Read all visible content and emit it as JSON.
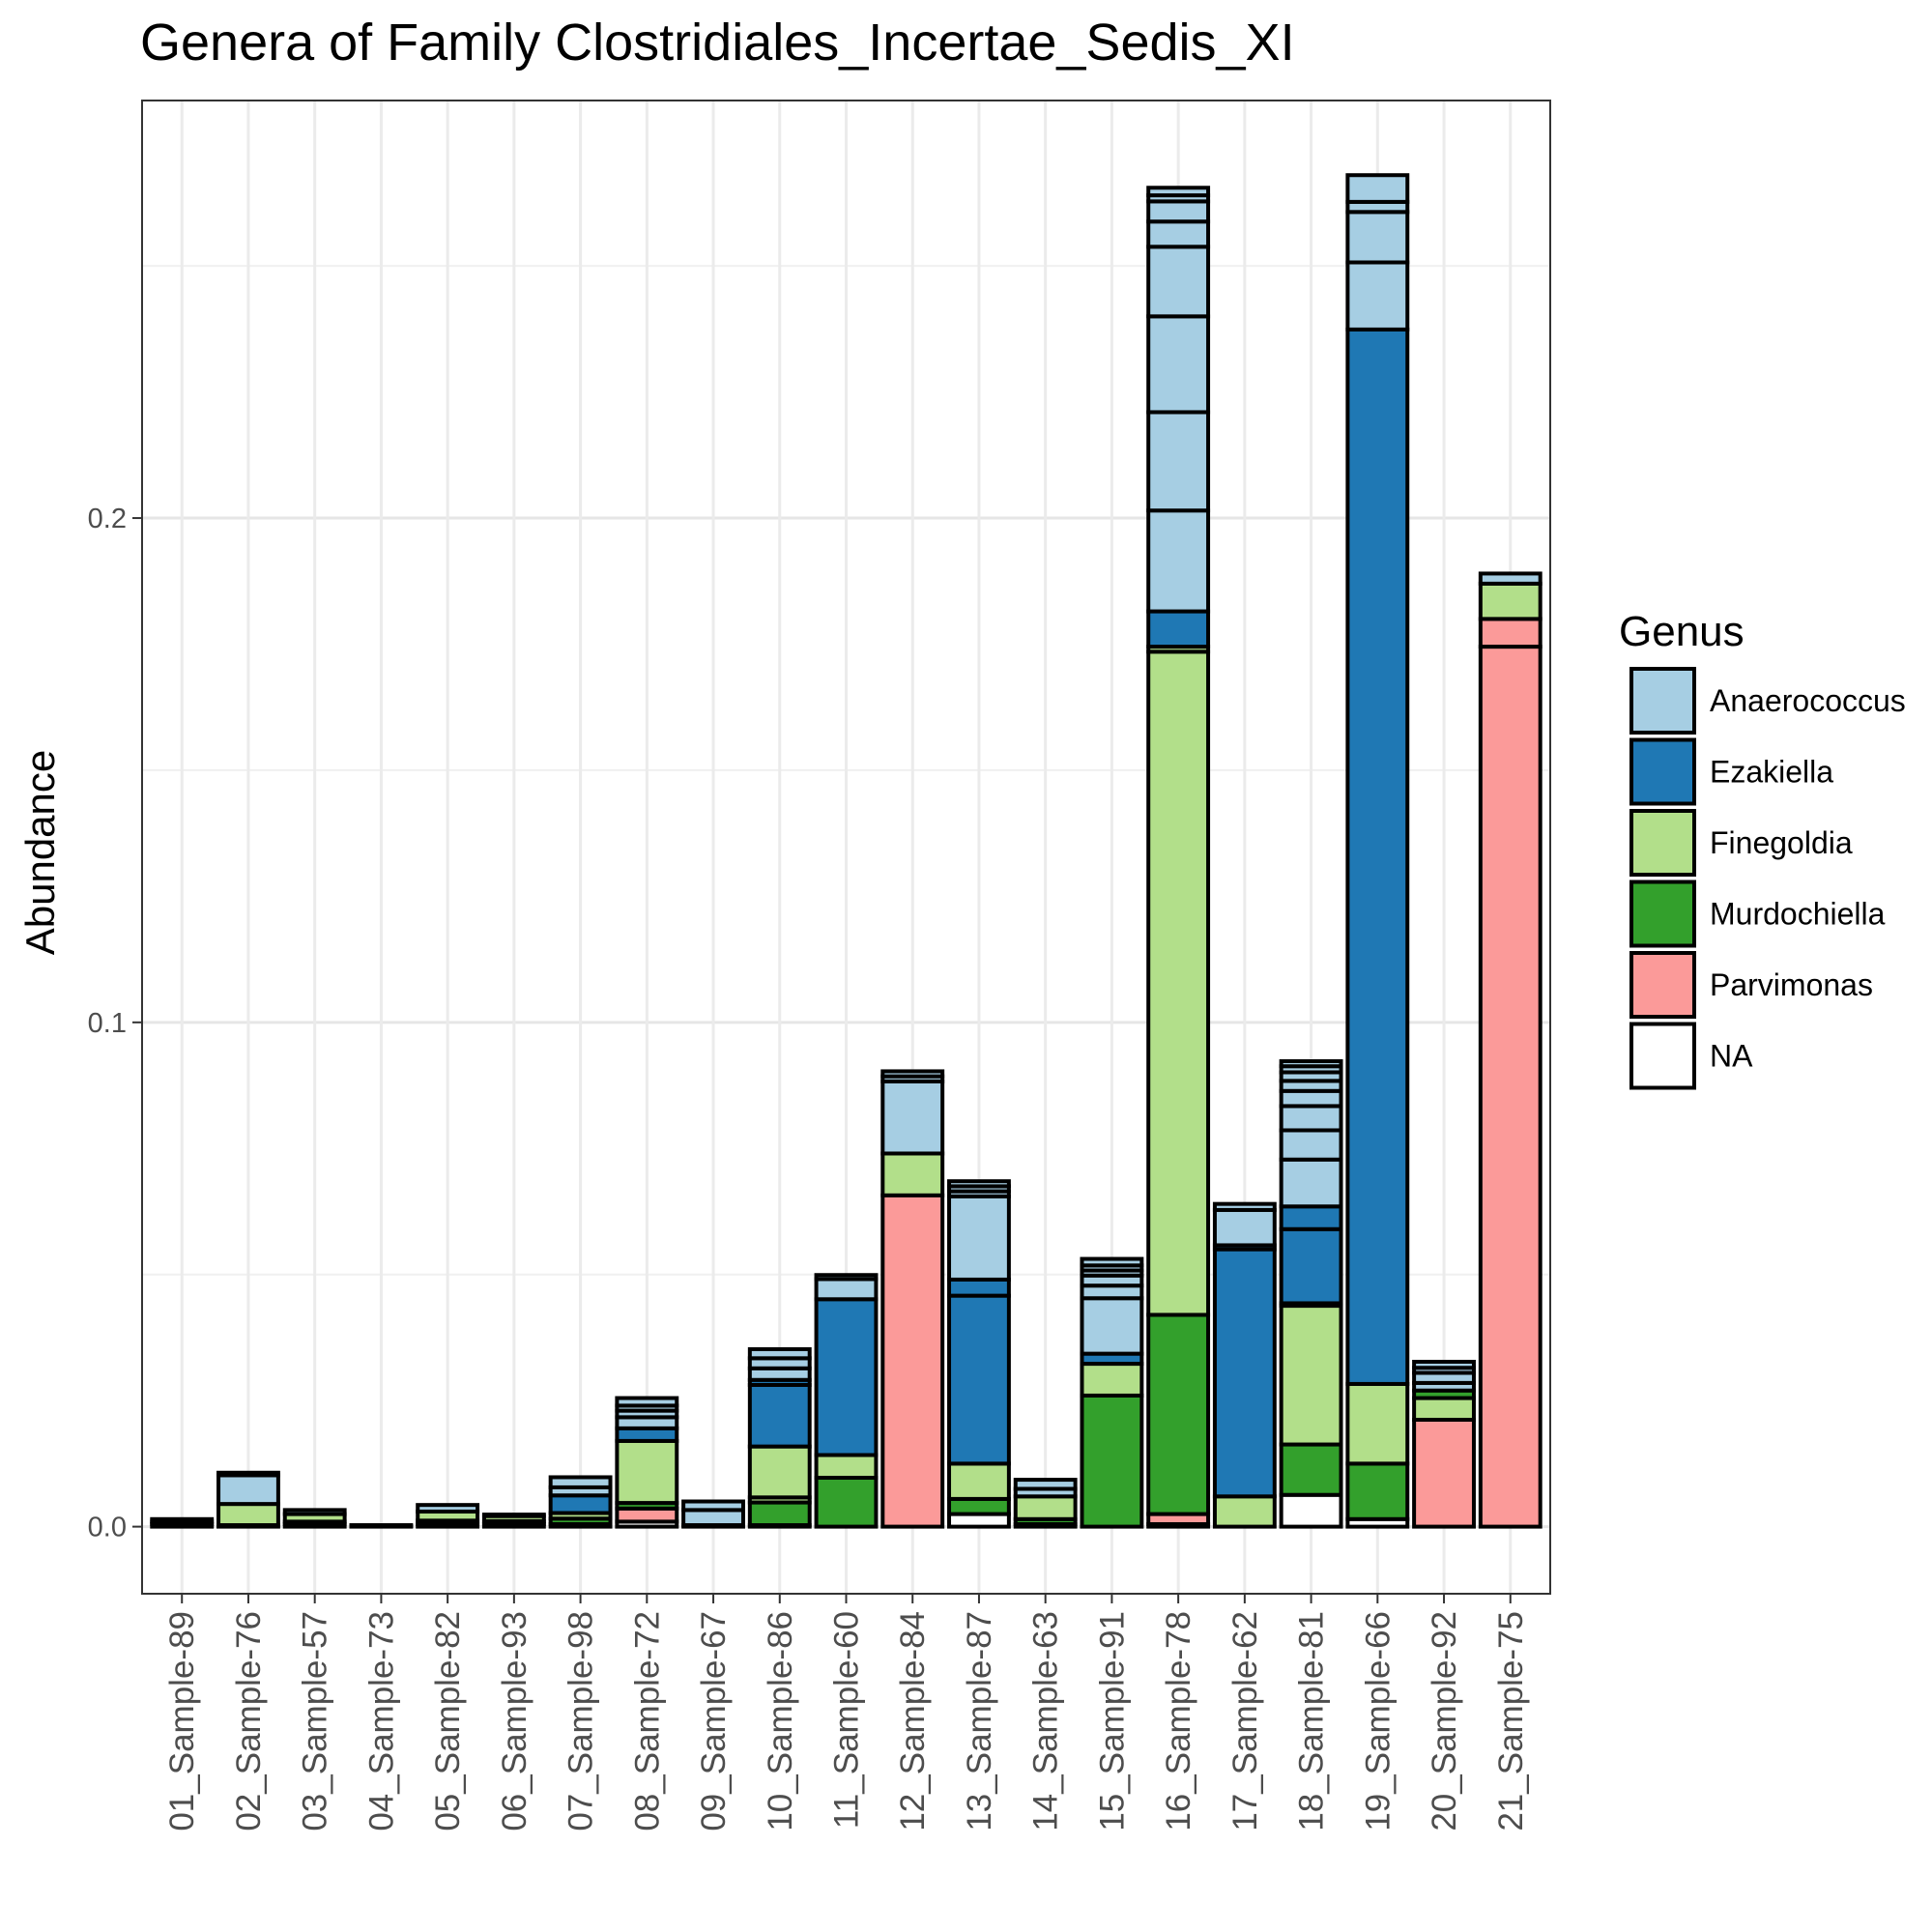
{
  "chart_data": {
    "type": "bar",
    "stacked": true,
    "title": "Genera of Family Clostridiales_Incertae_Sedis_XI",
    "ylabel": "Abundance",
    "xlabel": "",
    "ylim": [
      -0.0133,
      0.2828
    ],
    "yticks": [
      0.0,
      0.1,
      0.2
    ],
    "ytick_labels": [
      "0.0",
      "0.1",
      "0.2"
    ],
    "grid": true,
    "legend": {
      "title": "Genus",
      "position": "right",
      "entries": [
        {
          "name": "Anaerococcus",
          "color": "#a6cee3"
        },
        {
          "name": "Ezakiella",
          "color": "#1f78b4"
        },
        {
          "name": "Finegoldia",
          "color": "#b2df8a"
        },
        {
          "name": "Murdochiella",
          "color": "#33a02c"
        },
        {
          "name": "Parvimonas",
          "color": "#fb9a99"
        },
        {
          "name": "NA",
          "color": "#ffffff"
        }
      ]
    },
    "categories": [
      "01_Sample-89",
      "02_Sample-76",
      "03_Sample-57",
      "04_Sample-73",
      "05_Sample-82",
      "06_Sample-93",
      "07_Sample-98",
      "08_Sample-72",
      "09_Sample-67",
      "10_Sample-86",
      "11_Sample-60",
      "12_Sample-84",
      "13_Sample-87",
      "14_Sample-63",
      "15_Sample-91",
      "16_Sample-78",
      "17_Sample-62",
      "18_Sample-81",
      "19_Sample-66",
      "20_Sample-92",
      "21_Sample-75"
    ],
    "stacks": [
      [
        {
          "genus": "NA",
          "value": 0.0005
        },
        {
          "genus": "Murdochiella",
          "value": 0.0005
        },
        {
          "genus": "Anaerococcus",
          "value": 0.0005
        }
      ],
      [
        {
          "genus": "NA",
          "value": 0.0003
        },
        {
          "genus": "Finegoldia",
          "value": 0.0042
        },
        {
          "genus": "Anaerococcus",
          "value": 0.0057
        },
        {
          "genus": "NA",
          "value": 0.0005
        }
      ],
      [
        {
          "genus": "NA",
          "value": 0.0005
        },
        {
          "genus": "Murdochiella",
          "value": 0.0005
        },
        {
          "genus": "Finegoldia",
          "value": 0.0015
        },
        {
          "genus": "Anaerococcus",
          "value": 0.0008
        }
      ],
      [
        {
          "genus": "NA",
          "value": 0.0001
        },
        {
          "genus": "Anaerococcus",
          "value": 0.0002
        }
      ],
      [
        {
          "genus": "NA",
          "value": 0.0005
        },
        {
          "genus": "Murdochiella",
          "value": 0.0007
        },
        {
          "genus": "Finegoldia",
          "value": 0.0018
        },
        {
          "genus": "Anaerococcus",
          "value": 0.0013
        }
      ],
      [
        {
          "genus": "NA",
          "value": 0.0005
        },
        {
          "genus": "Murdochiella",
          "value": 0.0006
        },
        {
          "genus": "Finegoldia",
          "value": 0.001
        },
        {
          "genus": "Anaerococcus",
          "value": 0.0003
        }
      ],
      [
        {
          "genus": "NA",
          "value": 0.0005
        },
        {
          "genus": "Murdochiella",
          "value": 0.0011
        },
        {
          "genus": "Finegoldia",
          "value": 0.0011
        },
        {
          "genus": "Ezakiella",
          "value": 0.0035
        },
        {
          "genus": "Anaerococcus",
          "value": 0.0016
        },
        {
          "genus": "Anaerococcus",
          "value": 0.002
        }
      ],
      [
        {
          "genus": "NA",
          "value": 0.001
        },
        {
          "genus": "Parvimonas",
          "value": 0.0026
        },
        {
          "genus": "Murdochiella",
          "value": 0.0011
        },
        {
          "genus": "Finegoldia",
          "value": 0.0123
        },
        {
          "genus": "Ezakiella",
          "value": 0.0025
        },
        {
          "genus": "Anaerococcus",
          "value": 0.0022
        },
        {
          "genus": "Anaerococcus",
          "value": 0.0013
        },
        {
          "genus": "Anaerococcus",
          "value": 0.001
        },
        {
          "genus": "Anaerococcus",
          "value": 0.0015
        }
      ],
      [
        {
          "genus": "NA",
          "value": 0.0003
        },
        {
          "genus": "Anaerococcus",
          "value": 0.003
        },
        {
          "genus": "Anaerococcus",
          "value": 0.0017
        }
      ],
      [
        {
          "genus": "NA",
          "value": 0.0003
        },
        {
          "genus": "Murdochiella",
          "value": 0.0045
        },
        {
          "genus": "Finegoldia",
          "value": 0.001
        },
        {
          "genus": "Finegoldia",
          "value": 0.0101
        },
        {
          "genus": "Ezakiella",
          "value": 0.0122
        },
        {
          "genus": "Ezakiella",
          "value": 0.001
        },
        {
          "genus": "Anaerococcus",
          "value": 0.0023
        },
        {
          "genus": "Anaerococcus",
          "value": 0.002
        },
        {
          "genus": "Anaerococcus",
          "value": 0.0018
        }
      ],
      [
        {
          "genus": "Murdochiella",
          "value": 0.0097
        },
        {
          "genus": "Finegoldia",
          "value": 0.0045
        },
        {
          "genus": "Ezakiella",
          "value": 0.0309
        },
        {
          "genus": "Anaerococcus",
          "value": 0.004
        },
        {
          "genus": "Anaerococcus",
          "value": 0.0008
        }
      ],
      [
        {
          "genus": "Parvimonas",
          "value": 0.0657
        },
        {
          "genus": "Finegoldia",
          "value": 0.0083
        },
        {
          "genus": "Anaerococcus",
          "value": 0.0143
        },
        {
          "genus": "Anaerococcus",
          "value": 0.001
        },
        {
          "genus": "Anaerococcus",
          "value": 0.001
        }
      ],
      [
        {
          "genus": "NA",
          "value": 0.0025
        },
        {
          "genus": "Murdochiella",
          "value": 0.003
        },
        {
          "genus": "Finegoldia",
          "value": 0.007
        },
        {
          "genus": "Ezakiella",
          "value": 0.0333
        },
        {
          "genus": "Ezakiella",
          "value": 0.0032
        },
        {
          "genus": "Anaerococcus",
          "value": 0.0165
        },
        {
          "genus": "Anaerococcus",
          "value": 0.001
        },
        {
          "genus": "Anaerococcus",
          "value": 0.001
        },
        {
          "genus": "Anaerococcus",
          "value": 0.001
        }
      ],
      [
        {
          "genus": "NA",
          "value": 0.0005
        },
        {
          "genus": "Murdochiella",
          "value": 0.001
        },
        {
          "genus": "Finegoldia",
          "value": 0.0045
        },
        {
          "genus": "Anaerococcus",
          "value": 0.0015
        },
        {
          "genus": "Anaerococcus",
          "value": 0.0018
        }
      ],
      [
        {
          "genus": "Murdochiella",
          "value": 0.026
        },
        {
          "genus": "Finegoldia",
          "value": 0.0063
        },
        {
          "genus": "Ezakiella",
          "value": 0.002
        },
        {
          "genus": "Anaerococcus",
          "value": 0.011
        },
        {
          "genus": "Anaerococcus",
          "value": 0.0025
        },
        {
          "genus": "Anaerococcus",
          "value": 0.002
        },
        {
          "genus": "Anaerococcus",
          "value": 0.001
        },
        {
          "genus": "Anaerococcus",
          "value": 0.001
        },
        {
          "genus": "Anaerococcus",
          "value": 0.0013
        }
      ],
      [
        {
          "genus": "NA",
          "value": 0.0005
        },
        {
          "genus": "Parvimonas",
          "value": 0.002
        },
        {
          "genus": "Murdochiella",
          "value": 0.0395
        },
        {
          "genus": "Finegoldia",
          "value": 0.1315
        },
        {
          "genus": "Finegoldia",
          "value": 0.001
        },
        {
          "genus": "Ezakiella",
          "value": 0.007
        },
        {
          "genus": "Anaerococcus",
          "value": 0.02
        },
        {
          "genus": "Anaerococcus",
          "value": 0.0195
        },
        {
          "genus": "Anaerococcus",
          "value": 0.019
        },
        {
          "genus": "Anaerococcus",
          "value": 0.0138
        },
        {
          "genus": "Anaerococcus",
          "value": 0.005
        },
        {
          "genus": "Anaerococcus",
          "value": 0.004
        },
        {
          "genus": "Anaerococcus",
          "value": 0.0012
        },
        {
          "genus": "Anaerococcus",
          "value": 0.0015
        }
      ],
      [
        {
          "genus": "Finegoldia",
          "value": 0.006
        },
        {
          "genus": "Ezakiella",
          "value": 0.049
        },
        {
          "genus": "Ezakiella",
          "value": 0.0008
        },
        {
          "genus": "Anaerococcus",
          "value": 0.007
        },
        {
          "genus": "Anaerococcus",
          "value": 0.0012
        }
      ],
      [
        {
          "genus": "NA",
          "value": 0.0063
        },
        {
          "genus": "Murdochiella",
          "value": 0.01
        },
        {
          "genus": "Finegoldia",
          "value": 0.0275
        },
        {
          "genus": "Finegoldia",
          "value": 0.0005
        },
        {
          "genus": "Ezakiella",
          "value": 0.0147
        },
        {
          "genus": "Ezakiella",
          "value": 0.0045
        },
        {
          "genus": "Anaerococcus",
          "value": 0.0093
        },
        {
          "genus": "Anaerococcus",
          "value": 0.0058
        },
        {
          "genus": "Anaerococcus",
          "value": 0.0048
        },
        {
          "genus": "Anaerococcus",
          "value": 0.003
        },
        {
          "genus": "Anaerococcus",
          "value": 0.002
        },
        {
          "genus": "Anaerococcus",
          "value": 0.0017
        },
        {
          "genus": "Anaerococcus",
          "value": 0.0012
        },
        {
          "genus": "Anaerococcus",
          "value": 0.001
        }
      ],
      [
        {
          "genus": "NA",
          "value": 0.0015
        },
        {
          "genus": "Murdochiella",
          "value": 0.011
        },
        {
          "genus": "Finegoldia",
          "value": 0.0158
        },
        {
          "genus": "Ezakiella",
          "value": 0.2091
        },
        {
          "genus": "Anaerococcus",
          "value": 0.0133
        },
        {
          "genus": "Anaerococcus",
          "value": 0.01
        },
        {
          "genus": "Anaerococcus",
          "value": 0.002
        },
        {
          "genus": "Anaerococcus",
          "value": 0.0053
        }
      ],
      [
        {
          "genus": "Parvimonas",
          "value": 0.0212
        },
        {
          "genus": "Finegoldia",
          "value": 0.0043
        },
        {
          "genus": "Murdochiella",
          "value": 0.0015
        },
        {
          "genus": "Anaerococcus",
          "value": 0.0015
        },
        {
          "genus": "Anaerococcus",
          "value": 0.002
        },
        {
          "genus": "Anaerococcus",
          "value": 0.001
        },
        {
          "genus": "Anaerococcus",
          "value": 0.0012
        }
      ],
      [
        {
          "genus": "Parvimonas",
          "value": 0.1745
        },
        {
          "genus": "Parvimonas",
          "value": 0.0055
        },
        {
          "genus": "Finegoldia",
          "value": 0.007
        },
        {
          "genus": "Anaerococcus",
          "value": 0.002
        }
      ]
    ]
  }
}
